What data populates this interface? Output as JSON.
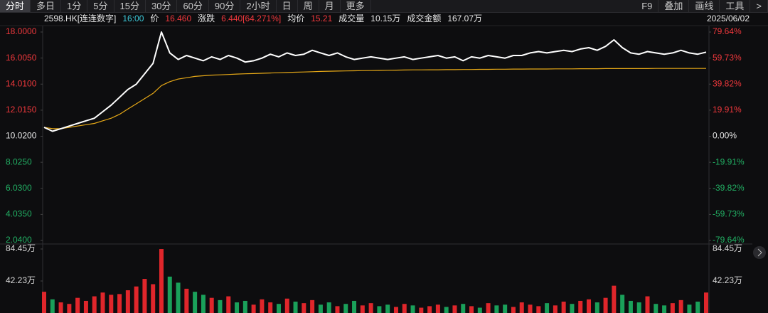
{
  "toolbar": {
    "tabs": [
      "分时",
      "多日",
      "1分",
      "5分",
      "15分",
      "30分",
      "60分",
      "90分",
      "2小时",
      "日",
      "周",
      "月",
      "更多"
    ],
    "right": [
      "F9",
      "叠加",
      "画线",
      "工具",
      ">"
    ]
  },
  "info": {
    "items": [
      {
        "text": "2598.HK[连连数字]",
        "color": "#e8e8e8"
      },
      {
        "text": "16:00",
        "color": "#3cc8d8"
      },
      {
        "text": "价",
        "color": "#e8e8e8"
      },
      {
        "text": "16.460",
        "color": "#f0383c"
      },
      {
        "text": "涨跌",
        "color": "#e8e8e8"
      },
      {
        "text": "6.440[64.271%]",
        "color": "#f0383c"
      },
      {
        "text": "均价",
        "color": "#e8e8e8"
      },
      {
        "text": "15.21",
        "color": "#f0383c"
      },
      {
        "text": "成交量",
        "color": "#e8e8e8"
      },
      {
        "text": "10.15万",
        "color": "#e8e8e8"
      },
      {
        "text": "成交金额",
        "color": "#e8e8e8"
      },
      {
        "text": "167.07万",
        "color": "#e8e8e8"
      }
    ],
    "date": "2025/06/02"
  },
  "chart_data": [
    {
      "type": "line",
      "ylim": [
        2.04,
        18.0
      ],
      "yticks": [
        {
          "value": 18.0,
          "label": "18.0000"
        },
        {
          "value": 16.005,
          "label": "16.0050"
        },
        {
          "value": 14.01,
          "label": "14.0100"
        },
        {
          "value": 12.015,
          "label": "12.0150"
        },
        {
          "value": 10.02,
          "label": "10.0200"
        },
        {
          "value": 8.025,
          "label": "8.0250"
        },
        {
          "value": 6.03,
          "label": "6.0300"
        },
        {
          "value": 4.035,
          "label": "4.0350"
        },
        {
          "value": 2.04,
          "label": "2.0400"
        }
      ],
      "y2lim": [
        -79.64,
        79.64
      ],
      "y2ticks": [
        {
          "value": 79.64,
          "label": "79.64%"
        },
        {
          "value": 59.73,
          "label": "59.73%"
        },
        {
          "value": 39.82,
          "label": "39.82%"
        },
        {
          "value": 19.91,
          "label": "19.91%"
        },
        {
          "value": 0,
          "label": "0.00%"
        },
        {
          "value": -19.91,
          "label": "-19.91%"
        },
        {
          "value": -39.82,
          "label": "-39.82%"
        },
        {
          "value": -59.73,
          "label": "-59.73%"
        },
        {
          "value": -79.64,
          "label": "-79.64%"
        }
      ],
      "up_color": "#f0383c",
      "flat_color": "#e8e8e8",
      "down_color": "#22b064",
      "series": [
        {
          "color": "#ffffff",
          "values": [
            10.7,
            10.4,
            10.6,
            10.8,
            11.0,
            11.2,
            11.4,
            11.9,
            12.4,
            13.0,
            13.6,
            14.0,
            14.8,
            15.6,
            18.0,
            16.4,
            15.9,
            16.2,
            16.0,
            15.8,
            16.1,
            15.9,
            16.2,
            16.0,
            15.7,
            15.8,
            16.0,
            16.3,
            16.1,
            16.4,
            16.2,
            16.3,
            16.6,
            16.4,
            16.2,
            16.4,
            16.1,
            15.9,
            16.0,
            16.1,
            16.0,
            15.9,
            16.0,
            16.1,
            15.9,
            16.0,
            16.1,
            16.2,
            16.0,
            16.1,
            15.8,
            16.1,
            16.0,
            16.2,
            16.1,
            16.0,
            16.2,
            16.2,
            16.4,
            16.5,
            16.4,
            16.5,
            16.6,
            16.5,
            16.7,
            16.8,
            16.6,
            16.9,
            17.4,
            16.8,
            16.4,
            16.3,
            16.5,
            16.4,
            16.3,
            16.4,
            16.6,
            16.4,
            16.3,
            16.46
          ]
        },
        {
          "color": "#e6a817",
          "values": [
            10.7,
            10.6,
            10.6,
            10.7,
            10.8,
            10.9,
            11.0,
            11.2,
            11.4,
            11.7,
            12.1,
            12.5,
            12.9,
            13.3,
            13.9,
            14.2,
            14.4,
            14.5,
            14.6,
            14.65,
            14.7,
            14.72,
            14.75,
            14.78,
            14.8,
            14.82,
            14.84,
            14.86,
            14.88,
            14.9,
            14.92,
            14.94,
            14.96,
            14.98,
            15.0,
            15.01,
            15.02,
            15.03,
            15.04,
            15.05,
            15.06,
            15.07,
            15.08,
            15.09,
            15.1,
            15.1,
            15.11,
            15.11,
            15.12,
            15.12,
            15.13,
            15.13,
            15.14,
            15.14,
            15.15,
            15.15,
            15.16,
            15.16,
            15.17,
            15.17,
            15.17,
            15.18,
            15.18,
            15.18,
            15.19,
            15.19,
            15.19,
            15.2,
            15.2,
            15.2,
            15.2,
            15.2,
            15.2,
            15.21,
            15.21,
            15.21,
            15.21,
            15.21,
            15.21,
            15.21
          ]
        }
      ]
    },
    {
      "type": "bar",
      "ylim": [
        0,
        84.45
      ],
      "yticks": [
        {
          "value": 84.45,
          "label": "84.45万"
        },
        {
          "value": 42.23,
          "label": "42.23万"
        }
      ],
      "up_color": "#e0262b",
      "down_color": "#1aa05a",
      "values": [
        28,
        18,
        14,
        12,
        20,
        16,
        22,
        27,
        24,
        25,
        30,
        35,
        45,
        38,
        84.4,
        48,
        40,
        32,
        28,
        24,
        20,
        17,
        22,
        14,
        16,
        11,
        18,
        14,
        12,
        19,
        15,
        13,
        17,
        11,
        14,
        9,
        12,
        16,
        10,
        13,
        9,
        11,
        8,
        12,
        10,
        7,
        9,
        11,
        8,
        10,
        12,
        9,
        7,
        13,
        10,
        11,
        8,
        14,
        11,
        9,
        13,
        10,
        15,
        12,
        16,
        18,
        14,
        20,
        36,
        24,
        16,
        14,
        22,
        12,
        10,
        13,
        17,
        11,
        15,
        27
      ]
    }
  ]
}
